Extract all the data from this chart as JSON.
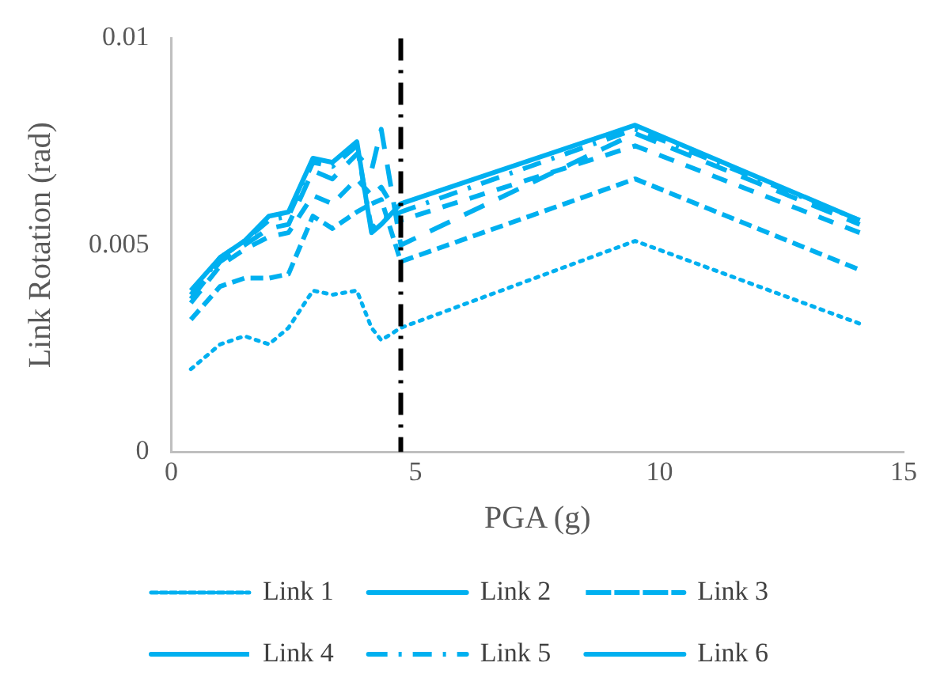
{
  "chart_data": {
    "type": "line",
    "xlabel": "PGA (g)",
    "ylabel": "Link Rotation (rad)",
    "x": [
      0.4,
      1.0,
      1.5,
      2.0,
      2.4,
      2.9,
      3.3,
      3.8,
      4.1,
      4.3,
      4.7,
      9.5,
      14.1
    ],
    "series": [
      {
        "name": "Link 1",
        "color": "#00b0f0",
        "line_style": "dotted",
        "values": [
          0.002,
          0.0026,
          0.0028,
          0.0026,
          0.003,
          0.0039,
          0.0038,
          0.0039,
          0.003,
          0.0027,
          0.003,
          0.0051,
          0.0031
        ]
      },
      {
        "name": "Link 2",
        "color": "#00b0f0",
        "line_style": "dashed",
        "values": [
          0.0032,
          0.004,
          0.0042,
          0.0042,
          0.0043,
          0.0057,
          0.0054,
          0.0058,
          0.006,
          0.0061,
          0.0046,
          0.0066,
          0.0044
        ]
      },
      {
        "name": "Link 3",
        "color": "#00b0f0",
        "line_style": "dashed",
        "values": [
          0.0036,
          0.0045,
          0.0049,
          0.0052,
          0.0053,
          0.0062,
          0.006,
          0.0066,
          0.0062,
          0.0064,
          0.0056,
          0.0074,
          0.0053
        ]
      },
      {
        "name": "Link 4",
        "color": "#00b0f0",
        "line_style": "dashed",
        "values": [
          0.0037,
          0.0046,
          0.005,
          0.0054,
          0.0055,
          0.0068,
          0.0066,
          0.0072,
          0.0068,
          0.0078,
          0.005,
          0.0077,
          0.0055
        ]
      },
      {
        "name": "Link 5",
        "color": "#00b0f0",
        "line_style": "dashed",
        "values": [
          0.0038,
          0.0047,
          0.0051,
          0.0056,
          0.0057,
          0.007,
          0.0069,
          0.0074,
          0.0054,
          0.0056,
          0.0058,
          0.0078,
          0.0056
        ]
      },
      {
        "name": "Link 6",
        "color": "#00b0f0",
        "line_style": "solid",
        "values": [
          0.0039,
          0.0047,
          0.0051,
          0.0057,
          0.0058,
          0.0071,
          0.007,
          0.0075,
          0.0053,
          0.0055,
          0.006,
          0.0079,
          0.0056
        ]
      }
    ],
    "xlim": [
      0,
      15
    ],
    "xticks": [
      0,
      5,
      10,
      15
    ],
    "ylim": [
      0,
      0.01
    ],
    "yticks": [
      0,
      0.005,
      0.01
    ],
    "ref_lines": [
      {
        "axis": "x",
        "value": 4.7,
        "color": "#000000",
        "line_style": "dashed"
      }
    ],
    "grid": false,
    "legend": "bottom",
    "marker": "none"
  }
}
